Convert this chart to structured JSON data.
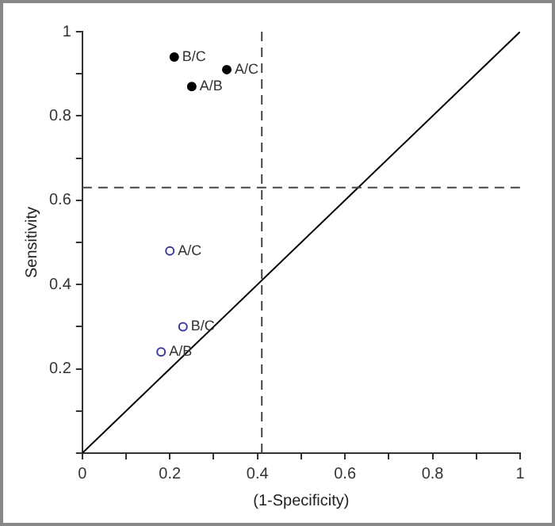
{
  "chart_data": {
    "type": "scatter",
    "xlabel": "(1-Specificity)",
    "ylabel": "Sensitivity",
    "xlim": [
      0,
      1
    ],
    "ylim": [
      0,
      1
    ],
    "xticks": [
      0,
      {
        "value": 0.1,
        "label": null
      },
      0.2,
      {
        "value": 0.3,
        "label": null
      },
      0.4,
      {
        "value": 0.5,
        "label": null
      },
      0.6,
      {
        "value": 0.7,
        "label": null
      },
      0.8,
      {
        "value": 0.9,
        "label": null
      },
      1
    ],
    "yticks": [
      {
        "value": 0,
        "label": null
      },
      {
        "value": 0.1,
        "label": null
      },
      0.2,
      {
        "value": 0.3,
        "label": null
      },
      0.4,
      {
        "value": 0.5,
        "label": null
      },
      0.6,
      {
        "value": 0.7,
        "label": null
      },
      0.8,
      {
        "value": 0.9,
        "label": null
      },
      1
    ],
    "series": [
      {
        "color": "#000000",
        "x": [
          0.21,
          0.33,
          0.25
        ],
        "values": [
          0.94,
          0.91,
          0.87
        ]
      },
      {
        "color": "#3a3a9a",
        "x": [
          0.2,
          0.23,
          0.18
        ],
        "values": [
          0.48,
          0.3,
          0.24
        ]
      },
      {
        "type": "line",
        "color": "#000000",
        "x": [
          0,
          1
        ],
        "values": [
          0,
          1
        ],
        "marker": "none"
      }
    ],
    "ref_lines": [
      {
        "axis": "x",
        "value": 0.41,
        "line_style": "dashed",
        "color": "#444444"
      },
      {
        "axis": "y",
        "value": 0.63,
        "line_style": "dashed",
        "color": "#444444"
      }
    ],
    "annotations": [
      {
        "text": "B/C",
        "x": 0.21,
        "y": 0.94
      },
      {
        "text": "A/C",
        "x": 0.33,
        "y": 0.91
      },
      {
        "text": "A/B",
        "x": 0.25,
        "y": 0.87
      },
      {
        "text": "A/C",
        "x": 0.2,
        "y": 0.48
      },
      {
        "text": "B/C",
        "x": 0.23,
        "y": 0.3
      },
      {
        "text": "A/B",
        "x": 0.18,
        "y": 0.24
      }
    ],
    "marker": "circle",
    "grid": false,
    "legend": false
  }
}
